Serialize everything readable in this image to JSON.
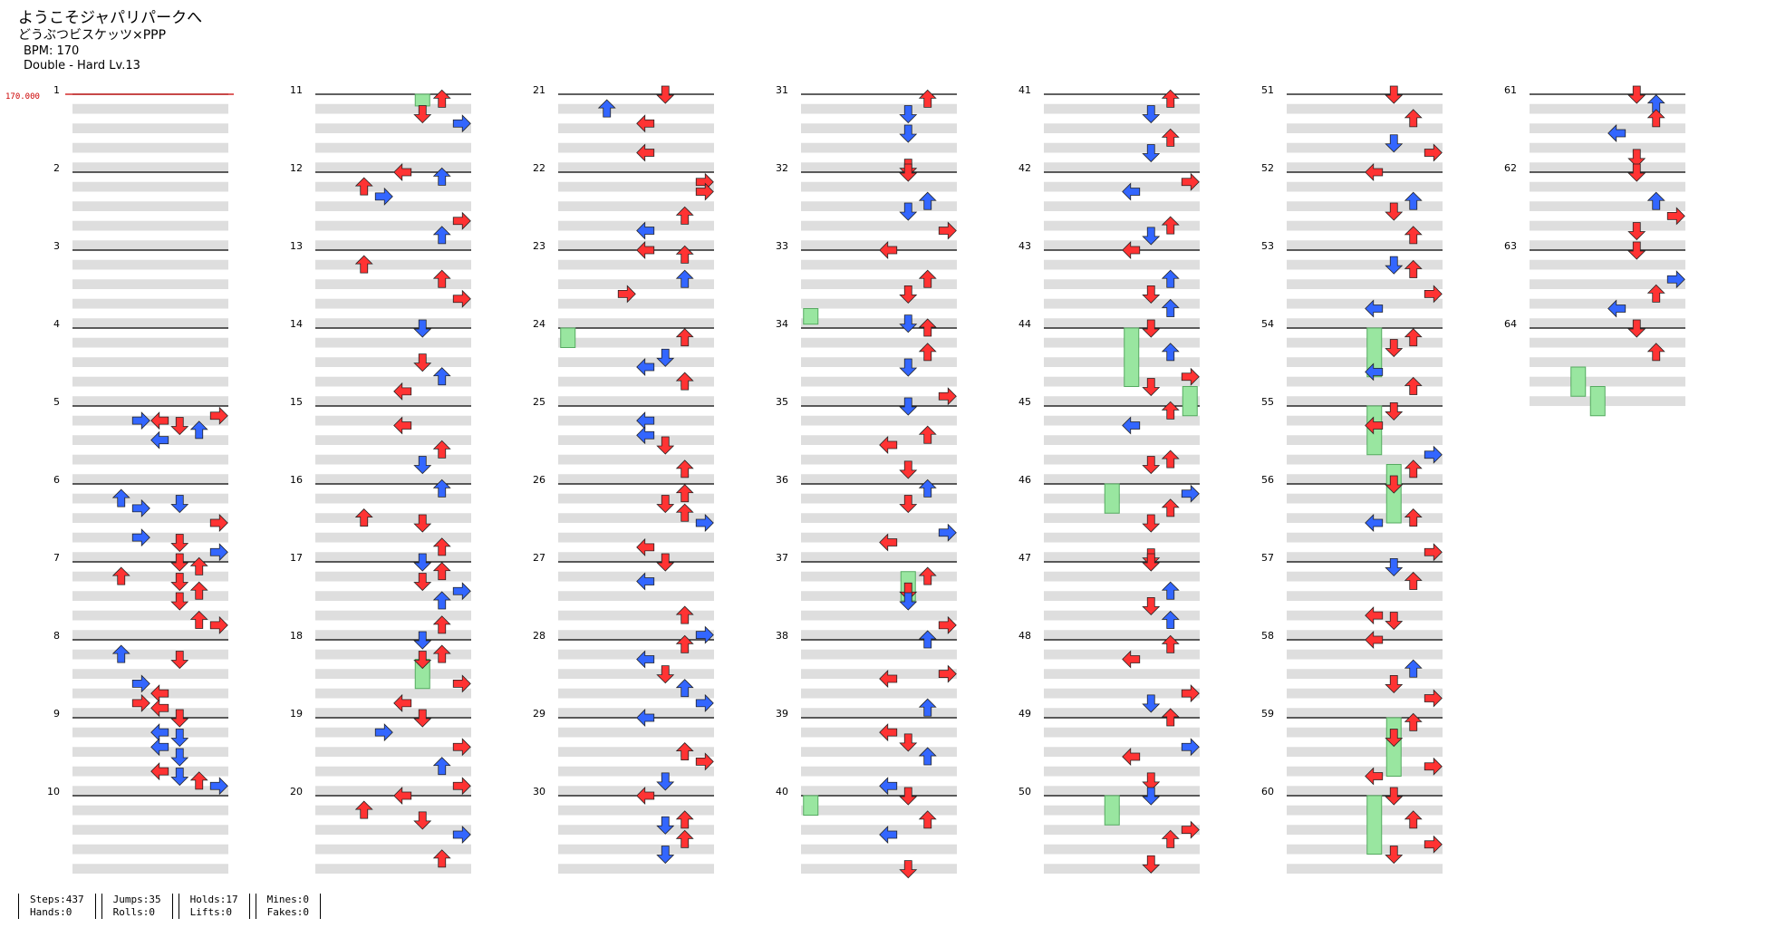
{
  "song": {
    "title": "ようこそジャパリパークへ",
    "artist": "どうぶつビスケッツ×PPP",
    "bpm_line": "BPM: 170",
    "chart_line": "Double - Hard Lv.13"
  },
  "bpm_marker": "170.000",
  "measure_count": 64,
  "measures_per_column": 10,
  "colors": {
    "left": "#ff3333",
    "down": "#3366ff",
    "up": "#ff3333",
    "right": "#ff3333",
    "quarter": "#ff3333",
    "eighth": "#3366ff",
    "sixteenth": "#ffee33",
    "hold": "#99e6a0",
    "band": "#dedede",
    "bpm": "#cc0000"
  },
  "stats": {
    "col1": [
      "Steps:437",
      "Hands:0"
    ],
    "col2": [
      "Jumps:35",
      "Rolls:0"
    ],
    "col3": [
      "Holds:17",
      "Lifts:0"
    ],
    "col4": [
      "Mines:0",
      "Fakes:0"
    ]
  },
  "notes": [
    [
      5,
      0,
      2,
      7,
      "q"
    ],
    [
      5,
      0,
      3,
      3,
      "e"
    ],
    [
      5,
      0,
      3,
      4,
      "q"
    ],
    [
      5,
      1,
      0,
      5,
      "q"
    ],
    [
      5,
      1,
      1,
      6,
      "e"
    ],
    [
      5,
      1,
      3,
      4,
      "e"
    ],
    [
      6,
      0,
      3,
      2,
      "e"
    ],
    [
      6,
      1,
      0,
      5,
      "e"
    ],
    [
      6,
      1,
      1,
      3,
      "e"
    ],
    [
      6,
      2,
      0,
      7,
      "q"
    ],
    [
      6,
      2,
      3,
      3,
      "e"
    ],
    [
      6,
      3,
      0,
      5,
      "q"
    ],
    [
      6,
      3,
      2,
      7,
      "e"
    ],
    [
      7,
      0,
      0,
      5,
      "q"
    ],
    [
      7,
      0,
      1,
      6,
      "q"
    ],
    [
      7,
      0,
      3,
      2,
      "q"
    ],
    [
      7,
      1,
      0,
      5,
      "q"
    ],
    [
      7,
      1,
      2,
      6,
      "q"
    ],
    [
      7,
      2,
      0,
      5,
      "q"
    ],
    [
      7,
      3,
      0,
      6,
      "q"
    ],
    [
      7,
      3,
      1,
      7,
      "q"
    ],
    [
      8,
      0,
      3,
      2,
      "e"
    ],
    [
      8,
      1,
      0,
      5,
      "q"
    ],
    [
      8,
      2,
      1,
      3,
      "e"
    ],
    [
      8,
      2,
      3,
      4,
      "q"
    ],
    [
      8,
      3,
      1,
      3,
      "q"
    ],
    [
      8,
      3,
      2,
      4,
      "q"
    ],
    [
      9,
      0,
      0,
      5,
      "q"
    ],
    [
      9,
      0,
      3,
      4,
      "e"
    ],
    [
      9,
      1,
      0,
      5,
      "e"
    ],
    [
      9,
      1,
      2,
      4,
      "e"
    ],
    [
      9,
      2,
      0,
      5,
      "e"
    ],
    [
      9,
      2,
      3,
      4,
      "q"
    ],
    [
      9,
      3,
      0,
      5,
      "e"
    ],
    [
      9,
      3,
      1,
      6,
      "q"
    ],
    [
      9,
      3,
      2,
      7,
      "e"
    ],
    [
      11,
      0,
      1,
      6,
      "q"
    ],
    [
      11,
      1,
      0,
      5,
      "q"
    ],
    [
      11,
      1,
      2,
      7,
      "e"
    ],
    [
      12,
      0,
      0,
      4,
      "q"
    ],
    [
      12,
      0,
      1,
      6,
      "e"
    ],
    [
      12,
      0,
      3,
      2,
      "q"
    ],
    [
      12,
      1,
      1,
      3,
      "e"
    ],
    [
      12,
      2,
      2,
      7,
      "q"
    ],
    [
      12,
      3,
      1,
      6,
      "e"
    ],
    [
      13,
      0,
      3,
      2,
      "q"
    ],
    [
      13,
      1,
      2,
      6,
      "q"
    ],
    [
      13,
      2,
      2,
      7,
      "q"
    ],
    [
      14,
      0,
      0,
      5,
      "e"
    ],
    [
      14,
      1,
      3,
      5,
      "q"
    ],
    [
      14,
      2,
      2,
      6,
      "e"
    ],
    [
      14,
      3,
      1,
      4,
      "q"
    ],
    [
      15,
      1,
      0,
      4,
      "q"
    ],
    [
      15,
      2,
      1,
      6,
      "q"
    ],
    [
      15,
      3,
      0,
      5,
      "e"
    ],
    [
      16,
      0,
      1,
      6,
      "e"
    ],
    [
      16,
      1,
      3,
      2,
      "q"
    ],
    [
      16,
      2,
      0,
      5,
      "q"
    ],
    [
      16,
      3,
      1,
      6,
      "q"
    ],
    [
      17,
      0,
      0,
      5,
      "e"
    ],
    [
      17,
      0,
      2,
      6,
      "q"
    ],
    [
      17,
      1,
      0,
      5,
      "q"
    ],
    [
      17,
      1,
      2,
      7,
      "e"
    ],
    [
      17,
      2,
      0,
      6,
      "e"
    ],
    [
      17,
      3,
      1,
      6,
      "q"
    ],
    [
      18,
      0,
      0,
      5,
      "e"
    ],
    [
      18,
      0,
      3,
      6,
      "q"
    ],
    [
      18,
      1,
      0,
      5,
      "q"
    ],
    [
      18,
      2,
      1,
      7,
      "q"
    ],
    [
      18,
      3,
      1,
      4,
      "q"
    ],
    [
      19,
      0,
      0,
      5,
      "q"
    ],
    [
      19,
      0,
      3,
      3,
      "e"
    ],
    [
      19,
      1,
      2,
      7,
      "q"
    ],
    [
      19,
      2,
      2,
      6,
      "e"
    ],
    [
      19,
      3,
      2,
      7,
      "q"
    ],
    [
      20,
      0,
      0,
      4,
      "q"
    ],
    [
      20,
      0,
      3,
      2,
      "q"
    ],
    [
      20,
      1,
      1,
      5,
      "q"
    ],
    [
      20,
      2,
      0,
      7,
      "e"
    ],
    [
      20,
      3,
      1,
      6,
      "q"
    ],
    [
      21,
      0,
      0,
      5,
      "q"
    ],
    [
      21,
      0,
      3,
      2,
      "e"
    ],
    [
      21,
      1,
      2,
      4,
      "q"
    ],
    [
      21,
      3,
      0,
      4,
      "q"
    ],
    [
      22,
      0,
      2,
      7,
      "q"
    ],
    [
      22,
      1,
      0,
      7,
      "q"
    ],
    [
      22,
      2,
      1,
      6,
      "q"
    ],
    [
      22,
      3,
      0,
      4,
      "e"
    ],
    [
      23,
      0,
      0,
      4,
      "q"
    ],
    [
      23,
      0,
      1,
      6,
      "q"
    ],
    [
      23,
      1,
      2,
      6,
      "e"
    ],
    [
      23,
      2,
      1,
      3,
      "q"
    ],
    [
      24,
      0,
      2,
      6,
      "q"
    ],
    [
      24,
      1,
      2,
      5,
      "e"
    ],
    [
      24,
      2,
      0,
      4,
      "e"
    ],
    [
      24,
      2,
      3,
      6,
      "q"
    ],
    [
      25,
      0,
      3,
      4,
      "e"
    ],
    [
      25,
      1,
      2,
      4,
      "e"
    ],
    [
      25,
      2,
      0,
      5,
      "q"
    ],
    [
      25,
      3,
      1,
      6,
      "q"
    ],
    [
      26,
      0,
      2,
      6,
      "q"
    ],
    [
      26,
      1,
      0,
      5,
      "q"
    ],
    [
      26,
      1,
      2,
      6,
      "q"
    ],
    [
      26,
      2,
      0,
      7,
      "e"
    ],
    [
      26,
      3,
      1,
      4,
      "q"
    ],
    [
      27,
      0,
      0,
      5,
      "q"
    ],
    [
      27,
      1,
      0,
      4,
      "e"
    ],
    [
      27,
      2,
      3,
      6,
      "q"
    ],
    [
      27,
      3,
      3,
      7,
      "e"
    ],
    [
      28,
      0,
      1,
      6,
      "q"
    ],
    [
      28,
      1,
      0,
      4,
      "e"
    ],
    [
      28,
      1,
      3,
      5,
      "q"
    ],
    [
      28,
      2,
      2,
      6,
      "e"
    ],
    [
      28,
      3,
      1,
      7,
      "e"
    ],
    [
      29,
      0,
      0,
      4,
      "e"
    ],
    [
      29,
      1,
      3,
      6,
      "q"
    ],
    [
      29,
      2,
      1,
      7,
      "q"
    ],
    [
      29,
      3,
      1,
      5,
      "e"
    ],
    [
      30,
      0,
      0,
      4,
      "q"
    ],
    [
      30,
      1,
      1,
      6,
      "q"
    ],
    [
      30,
      1,
      2,
      5,
      "e"
    ],
    [
      30,
      2,
      1,
      6,
      "q"
    ],
    [
      30,
      3,
      0,
      5,
      "e"
    ],
    [
      31,
      0,
      1,
      6,
      "q"
    ],
    [
      31,
      1,
      0,
      5,
      "e"
    ],
    [
      31,
      2,
      0,
      5,
      "e"
    ],
    [
      31,
      3,
      3,
      5,
      "q"
    ],
    [
      32,
      0,
      0,
      5,
      "q"
    ],
    [
      32,
      1,
      2,
      6,
      "e"
    ],
    [
      32,
      2,
      0,
      5,
      "e"
    ],
    [
      32,
      3,
      0,
      7,
      "q"
    ],
    [
      33,
      0,
      0,
      4,
      "q"
    ],
    [
      33,
      1,
      2,
      6,
      "q"
    ],
    [
      33,
      2,
      1,
      5,
      "q"
    ],
    [
      33,
      3,
      3,
      5,
      "e"
    ],
    [
      34,
      0,
      0,
      6,
      "q"
    ],
    [
      34,
      1,
      1,
      6,
      "q"
    ],
    [
      34,
      2,
      0,
      5,
      "e"
    ],
    [
      34,
      3,
      2,
      7,
      "q"
    ],
    [
      35,
      0,
      0,
      5,
      "e"
    ],
    [
      35,
      1,
      2,
      6,
      "q"
    ],
    [
      35,
      2,
      0,
      4,
      "q"
    ],
    [
      35,
      3,
      1,
      5,
      "q"
    ],
    [
      36,
      0,
      1,
      6,
      "e"
    ],
    [
      36,
      1,
      0,
      5,
      "q"
    ],
    [
      36,
      2,
      2,
      7,
      "e"
    ],
    [
      36,
      3,
      0,
      4,
      "q"
    ],
    [
      37,
      0,
      3,
      6,
      "q"
    ],
    [
      37,
      1,
      2,
      5,
      "q"
    ],
    [
      37,
      2,
      0,
      5,
      "e"
    ],
    [
      37,
      3,
      1,
      7,
      "q"
    ],
    [
      38,
      0,
      0,
      6,
      "e"
    ],
    [
      38,
      1,
      3,
      7,
      "q"
    ],
    [
      38,
      2,
      0,
      4,
      "q"
    ],
    [
      38,
      3,
      2,
      6,
      "e"
    ],
    [
      39,
      0,
      3,
      4,
      "q"
    ],
    [
      39,
      1,
      1,
      5,
      "q"
    ],
    [
      39,
      2,
      0,
      6,
      "e"
    ],
    [
      39,
      3,
      2,
      4,
      "e"
    ],
    [
      40,
      0,
      0,
      5,
      "q"
    ],
    [
      40,
      1,
      1,
      6,
      "q"
    ],
    [
      40,
      2,
      0,
      4,
      "e"
    ],
    [
      40,
      3,
      3,
      5,
      "q"
    ],
    [
      41,
      0,
      1,
      6,
      "q"
    ],
    [
      41,
      1,
      0,
      5,
      "e"
    ],
    [
      41,
      2,
      1,
      6,
      "q"
    ],
    [
      41,
      3,
      0,
      5,
      "e"
    ],
    [
      42,
      0,
      2,
      7,
      "q"
    ],
    [
      42,
      1,
      0,
      4,
      "e"
    ],
    [
      42,
      2,
      3,
      6,
      "q"
    ],
    [
      42,
      3,
      1,
      5,
      "e"
    ],
    [
      43,
      0,
      0,
      4,
      "q"
    ],
    [
      43,
      1,
      2,
      6,
      "e"
    ],
    [
      43,
      2,
      1,
      5,
      "q"
    ],
    [
      43,
      3,
      0,
      6,
      "e"
    ],
    [
      44,
      0,
      0,
      5,
      "q"
    ],
    [
      44,
      1,
      1,
      6,
      "e"
    ],
    [
      44,
      2,
      2,
      7,
      "q"
    ],
    [
      44,
      3,
      0,
      5,
      "q"
    ],
    [
      45,
      0,
      1,
      6,
      "q"
    ],
    [
      45,
      1,
      0,
      4,
      "e"
    ],
    [
      45,
      2,
      3,
      6,
      "q"
    ],
    [
      45,
      3,
      0,
      5,
      "q"
    ],
    [
      46,
      0,
      2,
      7,
      "e"
    ],
    [
      46,
      1,
      1,
      6,
      "q"
    ],
    [
      46,
      2,
      0,
      5,
      "q"
    ],
    [
      46,
      3,
      3,
      5,
      "q"
    ],
    [
      47,
      0,
      0,
      5,
      "q"
    ],
    [
      47,
      1,
      2,
      6,
      "e"
    ],
    [
      47,
      2,
      1,
      5,
      "q"
    ],
    [
      47,
      3,
      0,
      6,
      "e"
    ],
    [
      48,
      0,
      1,
      6,
      "q"
    ],
    [
      48,
      1,
      0,
      4,
      "q"
    ],
    [
      48,
      2,
      3,
      7,
      "q"
    ],
    [
      48,
      3,
      1,
      5,
      "e"
    ],
    [
      49,
      0,
      0,
      6,
      "q"
    ],
    [
      49,
      1,
      2,
      7,
      "e"
    ],
    [
      49,
      2,
      0,
      4,
      "q"
    ],
    [
      49,
      3,
      1,
      5,
      "q"
    ],
    [
      50,
      0,
      0,
      5,
      "e"
    ],
    [
      50,
      1,
      3,
      7,
      "q"
    ],
    [
      50,
      2,
      1,
      6,
      "q"
    ],
    [
      50,
      3,
      2,
      5,
      "q"
    ],
    [
      51,
      0,
      0,
      5,
      "q"
    ],
    [
      51,
      1,
      1,
      6,
      "q"
    ],
    [
      51,
      2,
      2,
      5,
      "e"
    ],
    [
      51,
      3,
      0,
      7,
      "q"
    ],
    [
      52,
      0,
      0,
      4,
      "q"
    ],
    [
      52,
      1,
      2,
      6,
      "e"
    ],
    [
      52,
      2,
      0,
      5,
      "q"
    ],
    [
      52,
      3,
      1,
      6,
      "q"
    ],
    [
      53,
      0,
      3,
      5,
      "e"
    ],
    [
      53,
      1,
      0,
      6,
      "q"
    ],
    [
      53,
      2,
      1,
      7,
      "q"
    ],
    [
      53,
      3,
      0,
      4,
      "e"
    ],
    [
      54,
      0,
      2,
      6,
      "q"
    ],
    [
      54,
      1,
      0,
      5,
      "q"
    ],
    [
      54,
      2,
      1,
      4,
      "e"
    ],
    [
      54,
      3,
      0,
      6,
      "q"
    ],
    [
      55,
      0,
      1,
      5,
      "q"
    ],
    [
      55,
      1,
      0,
      4,
      "q"
    ],
    [
      55,
      2,
      2,
      7,
      "e"
    ],
    [
      55,
      3,
      1,
      6,
      "q"
    ],
    [
      56,
      0,
      0,
      5,
      "q"
    ],
    [
      56,
      1,
      3,
      6,
      "q"
    ],
    [
      56,
      2,
      0,
      4,
      "e"
    ],
    [
      56,
      3,
      2,
      7,
      "q"
    ],
    [
      57,
      0,
      1,
      5,
      "e"
    ],
    [
      57,
      1,
      0,
      6,
      "q"
    ],
    [
      57,
      2,
      3,
      4,
      "q"
    ],
    [
      57,
      3,
      0,
      5,
      "q"
    ],
    [
      58,
      0,
      0,
      4,
      "q"
    ],
    [
      58,
      1,
      2,
      6,
      "e"
    ],
    [
      58,
      2,
      1,
      5,
      "q"
    ],
    [
      58,
      3,
      0,
      7,
      "q"
    ],
    [
      59,
      0,
      1,
      6,
      "q"
    ],
    [
      59,
      1,
      0,
      5,
      "q"
    ],
    [
      59,
      2,
      2,
      7,
      "q"
    ],
    [
      59,
      3,
      0,
      4,
      "q"
    ],
    [
      60,
      0,
      0,
      5,
      "q"
    ],
    [
      60,
      1,
      1,
      6,
      "q"
    ],
    [
      60,
      2,
      2,
      7,
      "q"
    ],
    [
      60,
      3,
      0,
      5,
      "q"
    ],
    [
      61,
      0,
      0,
      5,
      "q"
    ],
    [
      61,
      0,
      2,
      6,
      "e"
    ],
    [
      61,
      1,
      1,
      6,
      "q"
    ],
    [
      61,
      2,
      0,
      4,
      "e"
    ],
    [
      61,
      3,
      1,
      5,
      "q"
    ],
    [
      62,
      0,
      0,
      5,
      "q"
    ],
    [
      62,
      1,
      2,
      6,
      "e"
    ],
    [
      62,
      2,
      1,
      7,
      "q"
    ],
    [
      62,
      3,
      0,
      5,
      "q"
    ],
    [
      63,
      0,
      0,
      5,
      "q"
    ],
    [
      63,
      1,
      2,
      7,
      "e"
    ],
    [
      63,
      2,
      1,
      6,
      "q"
    ],
    [
      63,
      3,
      0,
      4,
      "e"
    ],
    [
      64,
      0,
      0,
      5,
      "q"
    ],
    [
      64,
      1,
      1,
      6,
      "q"
    ]
  ],
  "holds": [
    [
      11,
      0,
      0,
      5,
      0.6
    ],
    [
      24,
      0,
      0,
      0,
      1.0
    ],
    [
      33,
      3,
      0,
      0,
      0.8
    ],
    [
      40,
      0,
      0,
      0,
      1.0
    ],
    [
      44,
      0,
      0,
      4,
      3.0
    ],
    [
      44,
      3,
      0,
      7,
      1.5
    ],
    [
      46,
      0,
      0,
      3,
      1.5
    ],
    [
      50,
      0,
      0,
      3,
      1.5
    ],
    [
      55,
      0,
      0,
      4,
      2.5
    ],
    [
      55,
      3,
      0,
      5,
      3.0
    ],
    [
      59,
      0,
      0,
      5,
      3.0
    ],
    [
      60,
      0,
      0,
      4,
      3.0
    ],
    [
      64,
      2,
      0,
      2,
      1.5
    ],
    [
      64,
      3,
      0,
      3,
      1.5
    ],
    [
      18,
      0,
      2,
      5,
      1.5
    ],
    [
      37,
      0,
      1,
      5,
      1.5
    ],
    [
      54,
      0,
      0,
      4,
      2.5
    ]
  ]
}
